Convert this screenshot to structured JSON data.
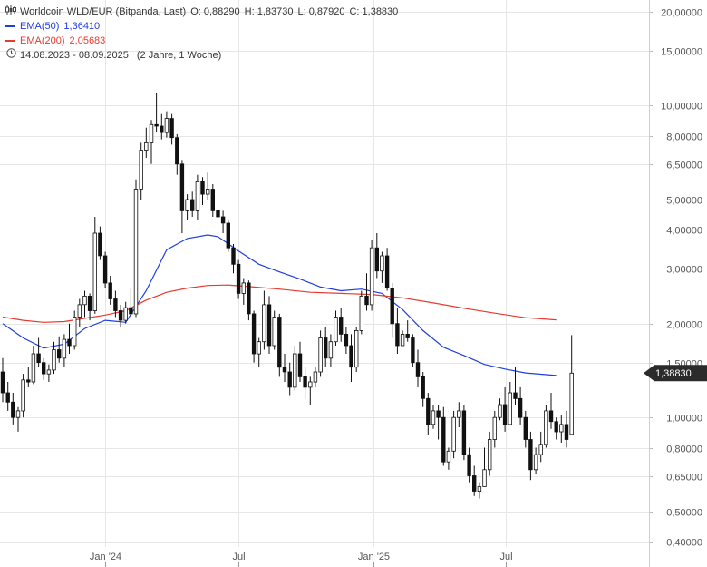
{
  "legend": {
    "title": "Worldcoin WLD/EUR (Bitpanda, Last)",
    "o": "O: 0,88290",
    "h": "H: 1,83730",
    "l": "L: 0,87920",
    "c": "C: 1,38830",
    "ema50_label": "EMA(50)",
    "ema50_value": "1,36410",
    "ema200_label": "EMA(200)",
    "ema200_value": "2,05683",
    "range": "14.08.2023 - 08.09.2025",
    "range_note": "(2 Jahre, 1 Woche)",
    "chart_icon": "candlestick-icon",
    "range_icon": "clock-icon"
  },
  "colors": {
    "ema50": "#1f3fe0",
    "ema200": "#e8392f",
    "candle": "#111111",
    "grid": "#e6e6e6",
    "badge_bg": "#2b2b2b",
    "badge_text": "#ffffff"
  },
  "chart_data": {
    "type": "candlestick",
    "scale": "log",
    "y_range": [
      0.36,
      22
    ],
    "y_ticks": [
      {
        "value": 20,
        "label": "20,00000"
      },
      {
        "value": 15,
        "label": "15,00000"
      },
      {
        "value": 10,
        "label": "10,00000"
      },
      {
        "value": 8,
        "label": "8,00000"
      },
      {
        "value": 6.5,
        "label": "6,50000"
      },
      {
        "value": 5,
        "label": "5,00000"
      },
      {
        "value": 4,
        "label": "4,00000"
      },
      {
        "value": 3,
        "label": "3,00000"
      },
      {
        "value": 2,
        "label": "2,00000"
      },
      {
        "value": 1.5,
        "label": "1,50000"
      },
      {
        "value": 1,
        "label": "1,00000"
      },
      {
        "value": 0.8,
        "label": "0,80000"
      },
      {
        "value": 0.65,
        "label": "0,65000"
      },
      {
        "value": 0.5,
        "label": "0,50000"
      },
      {
        "value": 0.4,
        "label": "0,40000"
      }
    ],
    "x_range": [
      "2023-08-14",
      "2025-09-29"
    ],
    "x_ticks": [
      {
        "date": "2024-01-01",
        "label": "Jan '24"
      },
      {
        "date": "2024-07-01",
        "label": "Jul"
      },
      {
        "date": "2025-01-01",
        "label": "Jan '25"
      },
      {
        "date": "2025-07-01",
        "label": "Jul"
      }
    ],
    "last_value_label": "1,38830",
    "last_value": 1.3883,
    "series": [
      {
        "name": "EMA(50)",
        "points": [
          [
            "2023-08-14",
            2.0
          ],
          [
            "2023-09-11",
            1.8
          ],
          [
            "2023-10-09",
            1.67
          ],
          [
            "2023-11-06",
            1.72
          ],
          [
            "2023-12-04",
            1.93
          ],
          [
            "2024-01-01",
            2.05
          ],
          [
            "2024-01-29",
            2.02
          ],
          [
            "2024-02-26",
            2.55
          ],
          [
            "2024-03-25",
            3.45
          ],
          [
            "2024-04-22",
            3.75
          ],
          [
            "2024-05-20",
            3.85
          ],
          [
            "2024-06-03",
            3.8
          ],
          [
            "2024-07-01",
            3.42
          ],
          [
            "2024-07-29",
            3.1
          ],
          [
            "2024-08-26",
            2.93
          ],
          [
            "2024-09-23",
            2.78
          ],
          [
            "2024-10-21",
            2.62
          ],
          [
            "2024-11-18",
            2.55
          ],
          [
            "2024-12-16",
            2.58
          ],
          [
            "2025-01-13",
            2.5
          ],
          [
            "2025-02-10",
            2.22
          ],
          [
            "2025-03-10",
            1.9
          ],
          [
            "2025-04-07",
            1.68
          ],
          [
            "2025-05-05",
            1.58
          ],
          [
            "2025-06-02",
            1.48
          ],
          [
            "2025-06-30",
            1.43
          ],
          [
            "2025-07-28",
            1.39
          ],
          [
            "2025-09-08",
            1.3641
          ]
        ]
      },
      {
        "name": "EMA(200)",
        "points": [
          [
            "2023-08-14",
            2.1
          ],
          [
            "2023-09-11",
            2.05
          ],
          [
            "2023-10-09",
            2.02
          ],
          [
            "2023-11-06",
            2.03
          ],
          [
            "2023-12-04",
            2.08
          ],
          [
            "2024-01-01",
            2.13
          ],
          [
            "2024-01-29",
            2.2
          ],
          [
            "2024-02-26",
            2.38
          ],
          [
            "2024-03-25",
            2.52
          ],
          [
            "2024-04-22",
            2.6
          ],
          [
            "2024-05-20",
            2.65
          ],
          [
            "2024-06-17",
            2.66
          ],
          [
            "2024-07-15",
            2.63
          ],
          [
            "2024-08-26",
            2.58
          ],
          [
            "2024-10-07",
            2.52
          ],
          [
            "2024-11-18",
            2.5
          ],
          [
            "2024-12-30",
            2.48
          ],
          [
            "2025-02-10",
            2.42
          ],
          [
            "2025-03-24",
            2.33
          ],
          [
            "2025-05-05",
            2.24
          ],
          [
            "2025-06-16",
            2.16
          ],
          [
            "2025-07-28",
            2.09
          ],
          [
            "2025-09-08",
            2.0568
          ]
        ]
      }
    ],
    "candles": [
      [
        "2023-08-14",
        1.4,
        1.55,
        1.12,
        1.2
      ],
      [
        "2023-08-21",
        1.2,
        1.3,
        1.05,
        1.12
      ],
      [
        "2023-08-28",
        1.12,
        1.2,
        0.95,
        1.0
      ],
      [
        "2023-09-04",
        1.0,
        1.08,
        0.9,
        1.05
      ],
      [
        "2023-09-11",
        1.05,
        1.38,
        1.0,
        1.32
      ],
      [
        "2023-09-18",
        1.32,
        1.45,
        1.25,
        1.3
      ],
      [
        "2023-09-25",
        1.3,
        1.7,
        1.28,
        1.6
      ],
      [
        "2023-10-02",
        1.6,
        1.8,
        1.45,
        1.5
      ],
      [
        "2023-10-09",
        1.5,
        1.55,
        1.32,
        1.38
      ],
      [
        "2023-10-16",
        1.38,
        1.48,
        1.3,
        1.42
      ],
      [
        "2023-10-23",
        1.42,
        1.75,
        1.38,
        1.65
      ],
      [
        "2023-10-30",
        1.65,
        1.82,
        1.5,
        1.55
      ],
      [
        "2023-11-06",
        1.55,
        1.85,
        1.45,
        1.78
      ],
      [
        "2023-11-13",
        1.78,
        2.0,
        1.6,
        1.7
      ],
      [
        "2023-11-20",
        1.7,
        2.2,
        1.65,
        2.1
      ],
      [
        "2023-11-27",
        2.1,
        2.4,
        1.95,
        2.3
      ],
      [
        "2023-12-04",
        2.3,
        2.55,
        2.1,
        2.45
      ],
      [
        "2023-12-11",
        2.45,
        2.5,
        2.05,
        2.2
      ],
      [
        "2023-12-18",
        2.2,
        4.4,
        2.15,
        3.9
      ],
      [
        "2023-12-25",
        3.9,
        4.1,
        3.2,
        3.3
      ],
      [
        "2024-01-01",
        3.3,
        3.4,
        2.6,
        2.7
      ],
      [
        "2024-01-08",
        2.7,
        2.85,
        2.3,
        2.4
      ],
      [
        "2024-01-15",
        2.4,
        2.55,
        2.1,
        2.2
      ],
      [
        "2024-01-22",
        2.2,
        2.3,
        1.95,
        2.05
      ],
      [
        "2024-01-29",
        2.05,
        2.35,
        2.0,
        2.25
      ],
      [
        "2024-02-05",
        2.25,
        2.6,
        2.1,
        2.15
      ],
      [
        "2024-02-12",
        2.15,
        5.8,
        2.1,
        5.4
      ],
      [
        "2024-02-19",
        5.4,
        7.6,
        5.0,
        7.2
      ],
      [
        "2024-02-26",
        7.2,
        8.5,
        6.8,
        7.6
      ],
      [
        "2024-03-04",
        7.6,
        9.0,
        6.5,
        8.7
      ],
      [
        "2024-03-11",
        8.7,
        11.0,
        8.2,
        8.6
      ],
      [
        "2024-03-18",
        8.6,
        9.4,
        7.8,
        8.2
      ],
      [
        "2024-03-25",
        8.2,
        9.6,
        7.9,
        9.1
      ],
      [
        "2024-04-01",
        9.1,
        9.4,
        7.5,
        7.9
      ],
      [
        "2024-04-08",
        7.9,
        8.1,
        6.0,
        6.5
      ],
      [
        "2024-04-15",
        6.5,
        6.7,
        3.9,
        4.6
      ],
      [
        "2024-04-22",
        4.6,
        5.2,
        4.3,
        5.0
      ],
      [
        "2024-04-29",
        5.0,
        5.3,
        4.4,
        4.6
      ],
      [
        "2024-05-06",
        4.6,
        6.0,
        4.3,
        5.7
      ],
      [
        "2024-05-13",
        5.7,
        5.9,
        4.8,
        5.2
      ],
      [
        "2024-05-20",
        5.2,
        6.1,
        5.0,
        5.4
      ],
      [
        "2024-05-27",
        5.4,
        5.6,
        4.4,
        4.6
      ],
      [
        "2024-06-03",
        4.6,
        4.8,
        4.2,
        4.4
      ],
      [
        "2024-06-10",
        4.4,
        4.6,
        3.9,
        4.2
      ],
      [
        "2024-06-17",
        4.2,
        4.3,
        3.4,
        3.5
      ],
      [
        "2024-06-24",
        3.5,
        3.6,
        2.9,
        3.1
      ],
      [
        "2024-07-01",
        3.1,
        3.2,
        2.4,
        2.5
      ],
      [
        "2024-07-08",
        2.5,
        2.8,
        2.3,
        2.7
      ],
      [
        "2024-07-15",
        2.7,
        2.75,
        2.05,
        2.15
      ],
      [
        "2024-07-22",
        2.15,
        2.2,
        1.5,
        1.6
      ],
      [
        "2024-07-29",
        1.6,
        1.8,
        1.45,
        1.75
      ],
      [
        "2024-08-05",
        1.75,
        2.55,
        1.65,
        2.3
      ],
      [
        "2024-08-12",
        2.3,
        2.45,
        1.6,
        1.7
      ],
      [
        "2024-08-19",
        1.7,
        2.2,
        1.65,
        2.1
      ],
      [
        "2024-08-26",
        2.1,
        2.15,
        1.35,
        1.45
      ],
      [
        "2024-09-02",
        1.45,
        1.6,
        1.3,
        1.4
      ],
      [
        "2024-09-09",
        1.4,
        1.5,
        1.18,
        1.25
      ],
      [
        "2024-09-16",
        1.25,
        1.7,
        1.22,
        1.6
      ],
      [
        "2024-09-23",
        1.6,
        1.75,
        1.3,
        1.35
      ],
      [
        "2024-09-30",
        1.35,
        1.45,
        1.15,
        1.25
      ],
      [
        "2024-10-07",
        1.25,
        1.35,
        1.1,
        1.3
      ],
      [
        "2024-10-14",
        1.3,
        1.45,
        1.25,
        1.4
      ],
      [
        "2024-10-21",
        1.4,
        1.9,
        1.35,
        1.8
      ],
      [
        "2024-10-28",
        1.8,
        1.95,
        1.45,
        1.55
      ],
      [
        "2024-11-04",
        1.55,
        1.85,
        1.45,
        1.75
      ],
      [
        "2024-11-11",
        1.75,
        2.2,
        1.7,
        2.1
      ],
      [
        "2024-11-18",
        2.1,
        2.25,
        1.75,
        1.85
      ],
      [
        "2024-11-25",
        1.85,
        1.95,
        1.6,
        1.7
      ],
      [
        "2024-12-02",
        1.7,
        1.85,
        1.3,
        1.45
      ],
      [
        "2024-12-09",
        1.45,
        1.95,
        1.4,
        1.9
      ],
      [
        "2024-12-16",
        1.9,
        2.55,
        1.85,
        2.45
      ],
      [
        "2024-12-23",
        2.45,
        2.9,
        2.2,
        2.3
      ],
      [
        "2024-12-30",
        2.3,
        3.7,
        2.2,
        3.5
      ],
      [
        "2025-01-06",
        3.5,
        3.9,
        2.8,
        2.95
      ],
      [
        "2025-01-13",
        2.95,
        3.4,
        2.7,
        3.3
      ],
      [
        "2025-01-20",
        3.3,
        3.5,
        2.55,
        2.6
      ],
      [
        "2025-01-27",
        2.6,
        2.7,
        1.8,
        2.0
      ],
      [
        "2025-02-03",
        2.0,
        2.25,
        1.6,
        1.7
      ],
      [
        "2025-02-10",
        1.7,
        1.9,
        1.7,
        1.85
      ],
      [
        "2025-02-17",
        1.85,
        2.05,
        1.75,
        1.8
      ],
      [
        "2025-02-24",
        1.8,
        1.85,
        1.45,
        1.5
      ],
      [
        "2025-03-03",
        1.5,
        1.65,
        1.25,
        1.35
      ],
      [
        "2025-03-10",
        1.35,
        1.4,
        1.08,
        1.15
      ],
      [
        "2025-03-17",
        1.15,
        1.2,
        0.88,
        0.95
      ],
      [
        "2025-03-24",
        0.95,
        1.1,
        0.92,
        1.05
      ],
      [
        "2025-03-31",
        1.05,
        1.1,
        0.85,
        1.0
      ],
      [
        "2025-04-07",
        1.0,
        1.08,
        0.7,
        0.72
      ],
      [
        "2025-04-14",
        0.72,
        0.8,
        0.68,
        0.78
      ],
      [
        "2025-04-21",
        0.78,
        1.05,
        0.74,
        1.0
      ],
      [
        "2025-04-28",
        1.0,
        1.12,
        0.93,
        1.05
      ],
      [
        "2025-05-05",
        1.05,
        1.1,
        0.73,
        0.76
      ],
      [
        "2025-05-12",
        0.76,
        0.8,
        0.62,
        0.65
      ],
      [
        "2025-05-19",
        0.65,
        0.7,
        0.56,
        0.58
      ],
      [
        "2025-05-26",
        0.58,
        0.62,
        0.55,
        0.6
      ],
      [
        "2025-06-02",
        0.6,
        0.8,
        0.62,
        0.68
      ],
      [
        "2025-06-09",
        0.68,
        0.9,
        0.65,
        0.85
      ],
      [
        "2025-06-16",
        0.85,
        1.05,
        0.8,
        1.0
      ],
      [
        "2025-06-23",
        1.0,
        1.15,
        0.98,
        1.1
      ],
      [
        "2025-06-30",
        1.1,
        1.25,
        0.9,
        0.95
      ],
      [
        "2025-07-07",
        0.95,
        1.3,
        0.95,
        1.2
      ],
      [
        "2025-07-14",
        1.2,
        1.45,
        1.1,
        1.15
      ],
      [
        "2025-07-21",
        1.15,
        1.25,
        0.95,
        1.0
      ],
      [
        "2025-07-28",
        1.0,
        1.05,
        0.8,
        0.85
      ],
      [
        "2025-08-04",
        0.85,
        0.9,
        0.63,
        0.68
      ],
      [
        "2025-08-11",
        0.68,
        0.8,
        0.66,
        0.76
      ],
      [
        "2025-08-18",
        0.76,
        0.9,
        0.72,
        0.82
      ],
      [
        "2025-08-25",
        0.82,
        1.1,
        0.8,
        1.05
      ],
      [
        "2025-09-01",
        1.05,
        1.2,
        0.92,
        0.97
      ],
      [
        "2025-09-08",
        0.97,
        1.0,
        0.85,
        0.9
      ],
      [
        "2025-09-15",
        0.9,
        1.02,
        0.83,
        0.95
      ],
      [
        "2025-09-22",
        0.95,
        1.05,
        0.8,
        0.85
      ],
      [
        "2025-09-29",
        0.883,
        1.837,
        0.879,
        1.388
      ]
    ]
  }
}
